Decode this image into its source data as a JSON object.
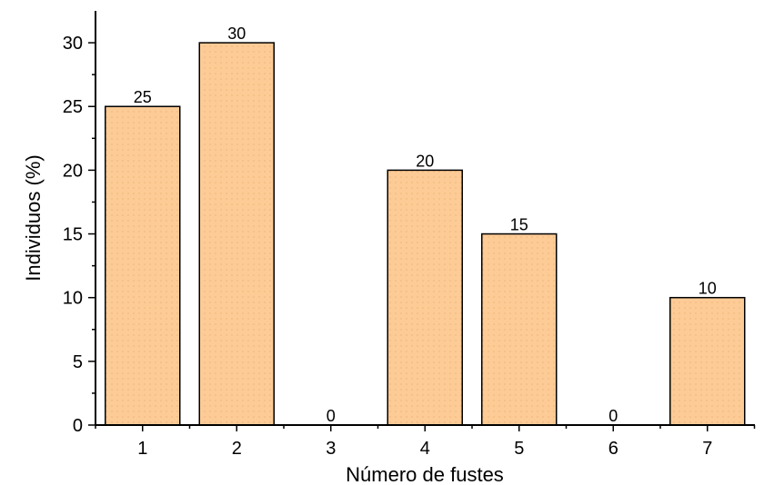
{
  "chart_data": {
    "type": "bar",
    "categories": [
      "1",
      "2",
      "3",
      "4",
      "5",
      "6",
      "7"
    ],
    "values": [
      25,
      30,
      0,
      20,
      15,
      0,
      10
    ],
    "data_labels": [
      "25",
      "30",
      "0",
      "20",
      "15",
      "0",
      "10"
    ],
    "xlabel": "Número de fustes",
    "ylabel": "Individuos (%)",
    "ylim": [
      0,
      32.5
    ],
    "yticks": [
      0,
      5,
      10,
      15,
      20,
      25,
      30
    ],
    "ytick_labels": [
      "0",
      "5",
      "10",
      "15",
      "20",
      "25",
      "30"
    ],
    "grid": false,
    "bar_color": "#FDCB96",
    "bar_stroke": "#000000"
  }
}
